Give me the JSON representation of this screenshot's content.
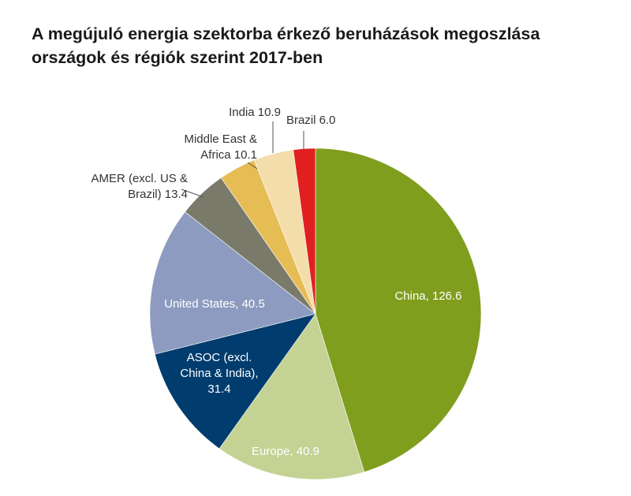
{
  "title_line1": "A megújuló energia szektorba érkező beruházások megoszlása",
  "title_line2": "országok és régiók szerint 2017-ben",
  "chart_data": {
    "type": "pie",
    "title": "A megújuló energia szektorba érkező beruházások megoszlása országok és régiók szerint 2017-ben",
    "start": "12 o'clock",
    "direction": "clockwise",
    "slices": [
      {
        "key": "china",
        "value": 126.6,
        "color": "#7f9e1e",
        "label_lines": [
          "China, 126.6"
        ],
        "label_color": "#ffffff"
      },
      {
        "key": "europe",
        "value": 40.9,
        "color": "#c4d294",
        "label_lines": [
          "Europe, 40.9"
        ],
        "label_color": "#ffffff"
      },
      {
        "key": "asoc",
        "value": 31.4,
        "color": "#003d6e",
        "label_lines": [
          "ASOC (excl.",
          "China & India),",
          "31.4"
        ],
        "label_color": "#ffffff"
      },
      {
        "key": "united-states",
        "value": 40.5,
        "color": "#8c9bbf",
        "label_lines": [
          "United States, 40.5"
        ],
        "label_color": "#ffffff"
      },
      {
        "key": "amer",
        "value": 13.4,
        "color": "#7a7a6b",
        "label_lines": [
          "AMER (excl. US &",
          "Brazil) 13.4"
        ],
        "label_color": "#333333"
      },
      {
        "key": "mea",
        "value": 10.1,
        "color": "#e6bd54",
        "label_lines": [
          "Middle East &",
          "Africa 10.1"
        ],
        "label_color": "#333333"
      },
      {
        "key": "india",
        "value": 10.9,
        "color": "#f3ddab",
        "label_lines": [
          "India 10.9"
        ],
        "label_color": "#333333"
      },
      {
        "key": "brazil",
        "value": 6.0,
        "color": "#e02020",
        "label_lines": [
          "Brazil 6.0"
        ],
        "label_color": "#333333"
      }
    ]
  }
}
